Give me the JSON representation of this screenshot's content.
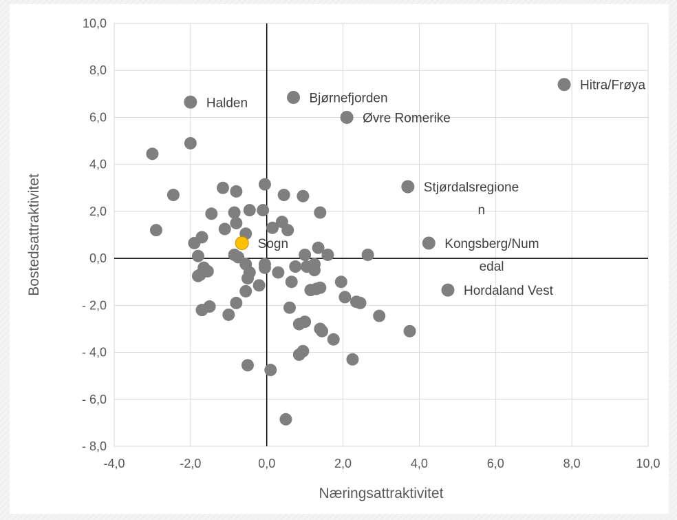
{
  "chart_data": {
    "type": "scatter",
    "title": "",
    "xlabel": "Næringsattraktivitet",
    "ylabel": "Bostedsattraktivitet",
    "xlim": [
      -4,
      10
    ],
    "ylim": [
      -8,
      10
    ],
    "x_ticks": [
      {
        "value": -4,
        "label": "-4,0"
      },
      {
        "value": -2,
        "label": "-2,0"
      },
      {
        "value": 0,
        "label": "0,0"
      },
      {
        "value": 2,
        "label": "2,0"
      },
      {
        "value": 4,
        "label": "4,0"
      },
      {
        "value": 6,
        "label": "6,0"
      },
      {
        "value": 8,
        "label": "8,0"
      },
      {
        "value": 10,
        "label": "10,0"
      }
    ],
    "y_ticks": [
      {
        "value": 10,
        "label": "10,0"
      },
      {
        "value": 8,
        "label": "8,0"
      },
      {
        "value": 6,
        "label": "6,0"
      },
      {
        "value": 4,
        "label": "4,0"
      },
      {
        "value": 2,
        "label": "2,0"
      },
      {
        "value": 0,
        "label": "0,0"
      },
      {
        "value": -2,
        "label": "- 2,0"
      },
      {
        "value": -4,
        "label": "- 4,0"
      },
      {
        "value": -6,
        "label": "- 6,0"
      },
      {
        "value": -8,
        "label": "- 8,0"
      }
    ],
    "grid": true,
    "legend": "none",
    "colors": {
      "point": "#7f7f7f",
      "highlight": "#ffc000",
      "grid": "#d9d9d9",
      "axis": "#000000"
    },
    "labeled_points": [
      {
        "name": "Hitra/Frøya",
        "lines": [
          "Hitra/Frøya"
        ],
        "x": 7.8,
        "y": 7.4
      },
      {
        "name": "Halden",
        "lines": [
          "Halden"
        ],
        "x": -2.0,
        "y": 6.65
      },
      {
        "name": "Bjørnefjorden",
        "lines": [
          "Bjørnefjorden"
        ],
        "x": 0.7,
        "y": 6.85
      },
      {
        "name": "Øvre Romerike",
        "lines": [
          "Øvre Romerike"
        ],
        "x": 2.1,
        "y": 6.0
      },
      {
        "name": "Stjørdalsregionen",
        "lines": [
          "Stjørdalsregione",
          "n"
        ],
        "x": 3.7,
        "y": 3.05
      },
      {
        "name": "Kongsberg/Numedal",
        "lines": [
          "Kongsberg/Num",
          "edal"
        ],
        "x": 4.25,
        "y": 0.65
      },
      {
        "name": "Hordaland Vest",
        "lines": [
          "Hordaland Vest"
        ],
        "x": 4.75,
        "y": -1.35
      },
      {
        "name": "Sogn",
        "lines": [
          "Sogn"
        ],
        "x": -0.65,
        "y": 0.65,
        "highlight": true
      }
    ],
    "points": [
      [
        -3.0,
        4.45
      ],
      [
        -2.0,
        4.9
      ],
      [
        -2.45,
        2.7
      ],
      [
        -2.9,
        1.2
      ],
      [
        -1.15,
        3.0
      ],
      [
        -0.8,
        2.85
      ],
      [
        -0.05,
        3.15
      ],
      [
        0.45,
        2.7
      ],
      [
        0.95,
        2.65
      ],
      [
        -1.45,
        1.9
      ],
      [
        -0.85,
        1.95
      ],
      [
        -0.45,
        2.05
      ],
      [
        -0.1,
        2.05
      ],
      [
        1.4,
        1.95
      ],
      [
        -1.1,
        1.25
      ],
      [
        -0.8,
        1.5
      ],
      [
        -0.55,
        1.05
      ],
      [
        0.15,
        1.3
      ],
      [
        0.4,
        1.55
      ],
      [
        0.55,
        1.2
      ],
      [
        -1.9,
        0.65
      ],
      [
        -1.7,
        0.9
      ],
      [
        -1.8,
        0.1
      ],
      [
        -0.85,
        0.15
      ],
      [
        -0.75,
        0.05
      ],
      [
        1.0,
        0.15
      ],
      [
        1.35,
        0.45
      ],
      [
        1.6,
        0.15
      ],
      [
        2.65,
        0.15
      ],
      [
        -0.55,
        -0.25
      ],
      [
        -0.05,
        -0.25
      ],
      [
        -0.05,
        -0.4
      ],
      [
        0.75,
        -0.35
      ],
      [
        1.05,
        -0.35
      ],
      [
        1.25,
        -0.25
      ],
      [
        1.25,
        -0.5
      ],
      [
        -1.65,
        -0.4
      ],
      [
        -1.8,
        -0.75
      ],
      [
        -1.75,
        -0.7
      ],
      [
        -1.55,
        -0.55
      ],
      [
        -0.45,
        -0.6
      ],
      [
        -0.5,
        -0.85
      ],
      [
        0.3,
        -0.6
      ],
      [
        -0.2,
        -1.15
      ],
      [
        0.65,
        -1.0
      ],
      [
        1.15,
        -1.35
      ],
      [
        1.3,
        -1.3
      ],
      [
        1.4,
        -1.25
      ],
      [
        1.95,
        -1.0
      ],
      [
        -0.55,
        -1.4
      ],
      [
        2.05,
        -1.65
      ],
      [
        2.35,
        -1.85
      ],
      [
        2.45,
        -1.9
      ],
      [
        -0.8,
        -1.9
      ],
      [
        -1.5,
        -2.05
      ],
      [
        -1.7,
        -2.2
      ],
      [
        -1.0,
        -2.4
      ],
      [
        0.6,
        -2.1
      ],
      [
        2.95,
        -2.45
      ],
      [
        0.85,
        -2.8
      ],
      [
        1.0,
        -2.7
      ],
      [
        1.4,
        -3.0
      ],
      [
        1.45,
        -3.1
      ],
      [
        1.75,
        -3.45
      ],
      [
        3.75,
        -3.1
      ],
      [
        0.85,
        -4.1
      ],
      [
        0.95,
        -3.95
      ],
      [
        2.25,
        -4.3
      ],
      [
        -0.5,
        -4.55
      ],
      [
        0.1,
        -4.75
      ],
      [
        0.5,
        -6.85
      ]
    ]
  }
}
